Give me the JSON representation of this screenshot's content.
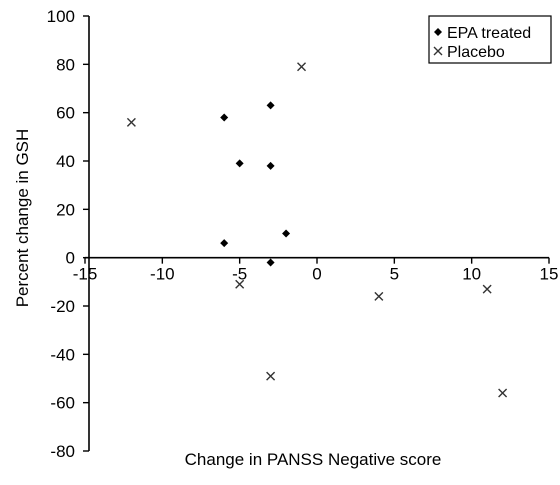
{
  "chart_data": {
    "type": "scatter",
    "title": "",
    "xlabel": "Change in PANSS Negative score",
    "ylabel": "Percent change in GSH",
    "xlim": [
      -15,
      15
    ],
    "ylim": [
      -80,
      100
    ],
    "xticks": [
      -15,
      -10,
      -5,
      0,
      5,
      10,
      15
    ],
    "yticks": [
      100,
      80,
      60,
      40,
      20,
      0,
      -20,
      -40,
      -60,
      -80
    ],
    "xtick_labels": [
      "-15",
      "-10",
      "-5",
      "0",
      "5",
      "10",
      "15"
    ],
    "ytick_labels": [
      "100",
      "80",
      "60",
      "40",
      "20",
      "0",
      "-20",
      "-40",
      "-60",
      "-80"
    ],
    "grid": false,
    "legend_position": "top-right",
    "series": [
      {
        "name": "EPA treated",
        "marker": "diamond",
        "color": "#000000",
        "points": [
          {
            "x": -6,
            "y": 58
          },
          {
            "x": -3,
            "y": 63
          },
          {
            "x": -5,
            "y": 39
          },
          {
            "x": -3,
            "y": 38
          },
          {
            "x": -2,
            "y": 10
          },
          {
            "x": -6,
            "y": 6
          },
          {
            "x": -3,
            "y": -2
          }
        ]
      },
      {
        "name": "Placebo",
        "marker": "x",
        "color": "#000000",
        "points": [
          {
            "x": -1,
            "y": 79
          },
          {
            "x": -12,
            "y": 56
          },
          {
            "x": -5,
            "y": -11
          },
          {
            "x": 4,
            "y": -16
          },
          {
            "x": 11,
            "y": -13
          },
          {
            "x": -3,
            "y": -49
          },
          {
            "x": 12,
            "y": -56
          }
        ]
      }
    ]
  }
}
